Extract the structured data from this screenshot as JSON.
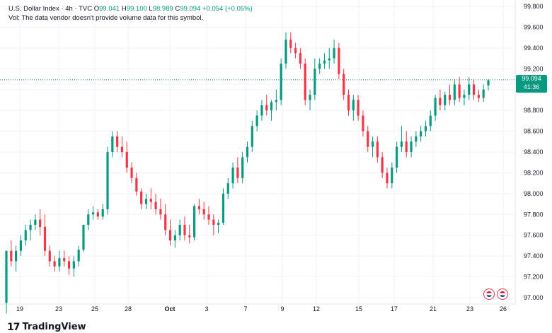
{
  "header": {
    "symbol": "U.S. Dollar Index · 4h · TVC",
    "o_label": "O",
    "o_value": "99.041",
    "h_label": "H",
    "h_value": "99.100",
    "l_label": "L",
    "l_value": "98.989",
    "c_label": "C",
    "c_value": "99.094",
    "change": "+0.054 (+0.05%)",
    "volume_note": "Vol: The data vendor doesn't provide volume data for this symbol."
  },
  "price_tag": {
    "price": "99.094",
    "countdown": "41:36"
  },
  "brand": {
    "name": "TradingView"
  },
  "colors": {
    "up": "#089981",
    "down": "#f23645",
    "grid": "#f0f3fa",
    "text": "#131722",
    "last_line": "#089981"
  },
  "icons": [
    "tradingview-logo-icon",
    "event-flag-icon",
    "event-flag-icon"
  ],
  "chart_data": {
    "type": "candlestick",
    "title": "U.S. Dollar Index · 4h · TVC",
    "y_ticks": [
      "97.000",
      "97.200",
      "97.400",
      "97.600",
      "97.800",
      "98.000",
      "98.200",
      "98.400",
      "98.600",
      "98.800",
      "99.000",
      "99.200",
      "99.400",
      "99.600",
      "99.800"
    ],
    "ylim": [
      97.0,
      99.85
    ],
    "x_ticks": [
      "19",
      "23",
      "25",
      "28",
      "Oct",
      "3",
      "7",
      "9",
      "12",
      "15",
      "17",
      "21",
      "23",
      "26"
    ],
    "last_price": 99.094,
    "candles": [
      [
        96.95,
        97.45,
        96.85,
        97.45
      ],
      [
        97.45,
        97.55,
        97.3,
        97.35
      ],
      [
        97.35,
        97.5,
        97.25,
        97.45
      ],
      [
        97.45,
        97.6,
        97.4,
        97.55
      ],
      [
        97.55,
        97.7,
        97.5,
        97.65
      ],
      [
        97.65,
        97.75,
        97.55,
        97.7
      ],
      [
        97.7,
        97.8,
        97.65,
        97.75
      ],
      [
        97.75,
        97.85,
        97.6,
        97.68
      ],
      [
        97.68,
        97.8,
        97.4,
        97.45
      ],
      [
        97.45,
        97.5,
        97.3,
        97.35
      ],
      [
        97.35,
        97.4,
        97.25,
        97.3
      ],
      [
        97.3,
        97.45,
        97.25,
        97.38
      ],
      [
        97.38,
        97.45,
        97.3,
        97.35
      ],
      [
        97.35,
        97.4,
        97.22,
        97.28
      ],
      [
        97.28,
        97.4,
        97.2,
        97.35
      ],
      [
        97.35,
        97.5,
        97.3,
        97.46
      ],
      [
        97.46,
        97.7,
        97.44,
        97.7
      ],
      [
        97.7,
        97.85,
        97.65,
        97.8
      ],
      [
        97.8,
        97.88,
        97.75,
        97.82
      ],
      [
        97.82,
        97.85,
        97.75,
        97.78
      ],
      [
        97.78,
        97.9,
        97.75,
        97.85
      ],
      [
        97.85,
        98.45,
        97.8,
        98.4
      ],
      [
        98.4,
        98.6,
        98.35,
        98.55
      ],
      [
        98.55,
        98.6,
        98.4,
        98.45
      ],
      [
        98.45,
        98.55,
        98.35,
        98.4
      ],
      [
        98.4,
        98.5,
        98.2,
        98.25
      ],
      [
        98.25,
        98.3,
        98.1,
        98.15
      ],
      [
        98.15,
        98.2,
        97.98,
        98.02
      ],
      [
        98.02,
        98.05,
        97.85,
        97.9
      ],
      [
        97.9,
        98.0,
        97.85,
        97.95
      ],
      [
        97.95,
        98.05,
        97.85,
        97.92
      ],
      [
        97.92,
        98.0,
        97.8,
        97.85
      ],
      [
        97.85,
        97.95,
        97.75,
        97.8
      ],
      [
        97.8,
        97.9,
        97.6,
        97.65
      ],
      [
        97.65,
        97.75,
        97.5,
        97.55
      ],
      [
        97.55,
        97.65,
        97.48,
        97.6
      ],
      [
        97.6,
        97.75,
        97.55,
        97.7
      ],
      [
        97.7,
        97.78,
        97.55,
        97.6
      ],
      [
        97.6,
        97.7,
        97.52,
        97.58
      ],
      [
        97.58,
        97.9,
        97.55,
        97.88
      ],
      [
        97.88,
        97.95,
        97.8,
        97.85
      ],
      [
        97.85,
        97.92,
        97.75,
        97.8
      ],
      [
        97.8,
        97.88,
        97.7,
        97.75
      ],
      [
        97.75,
        97.8,
        97.6,
        97.7
      ],
      [
        97.7,
        97.75,
        97.62,
        97.72
      ],
      [
        97.72,
        98.05,
        97.7,
        98.0
      ],
      [
        98.0,
        98.15,
        97.95,
        98.1
      ],
      [
        98.1,
        98.3,
        98.05,
        98.25
      ],
      [
        98.25,
        98.35,
        98.1,
        98.15
      ],
      [
        98.15,
        98.4,
        98.1,
        98.35
      ],
      [
        98.35,
        98.5,
        98.3,
        98.45
      ],
      [
        98.45,
        98.7,
        98.4,
        98.65
      ],
      [
        98.65,
        98.8,
        98.6,
        98.75
      ],
      [
        98.75,
        98.9,
        98.7,
        98.85
      ],
      [
        98.85,
        98.95,
        98.75,
        98.8
      ],
      [
        98.8,
        98.9,
        98.7,
        98.88
      ],
      [
        98.88,
        99.0,
        98.8,
        98.9
      ],
      [
        98.9,
        99.3,
        98.85,
        99.25
      ],
      [
        99.25,
        99.55,
        99.2,
        99.48
      ],
      [
        99.48,
        99.55,
        99.35,
        99.4
      ],
      [
        99.4,
        99.45,
        99.3,
        99.35
      ],
      [
        99.35,
        99.4,
        99.2,
        99.25
      ],
      [
        99.25,
        99.3,
        98.85,
        98.9
      ],
      [
        98.9,
        99.0,
        98.8,
        98.95
      ],
      [
        98.95,
        99.3,
        98.9,
        99.2
      ],
      [
        99.2,
        99.3,
        99.15,
        99.25
      ],
      [
        99.25,
        99.35,
        99.2,
        99.28
      ],
      [
        99.28,
        99.4,
        99.2,
        99.3
      ],
      [
        99.3,
        99.48,
        99.25,
        99.4
      ],
      [
        99.4,
        99.45,
        99.1,
        99.15
      ],
      [
        99.15,
        99.2,
        98.9,
        98.95
      ],
      [
        98.95,
        99.0,
        98.75,
        98.8
      ],
      [
        98.8,
        98.95,
        98.7,
        98.9
      ],
      [
        98.9,
        98.95,
        98.7,
        98.75
      ],
      [
        98.75,
        98.8,
        98.55,
        98.6
      ],
      [
        98.6,
        98.65,
        98.4,
        98.45
      ],
      [
        98.45,
        98.55,
        98.35,
        98.5
      ],
      [
        98.5,
        98.55,
        98.3,
        98.35
      ],
      [
        98.35,
        98.4,
        98.15,
        98.2
      ],
      [
        98.2,
        98.25,
        98.05,
        98.1
      ],
      [
        98.1,
        98.3,
        98.05,
        98.25
      ],
      [
        98.25,
        98.5,
        98.2,
        98.45
      ],
      [
        98.45,
        98.65,
        98.4,
        98.5
      ],
      [
        98.5,
        98.6,
        98.35,
        98.4
      ],
      [
        98.4,
        98.55,
        98.35,
        98.5
      ],
      [
        98.5,
        98.6,
        98.45,
        98.55
      ],
      [
        98.55,
        98.65,
        98.5,
        98.6
      ],
      [
        98.6,
        98.7,
        98.55,
        98.65
      ],
      [
        98.65,
        98.8,
        98.6,
        98.75
      ],
      [
        98.75,
        98.95,
        98.7,
        98.92
      ],
      [
        98.92,
        99.0,
        98.8,
        98.85
      ],
      [
        98.85,
        98.98,
        98.8,
        98.95
      ],
      [
        98.95,
        99.05,
        98.85,
        98.9
      ],
      [
        98.9,
        99.1,
        98.85,
        99.05
      ],
      [
        99.05,
        99.12,
        98.88,
        98.92
      ],
      [
        98.92,
        99.0,
        98.85,
        98.95
      ],
      [
        98.95,
        99.12,
        98.9,
        99.05
      ],
      [
        99.05,
        99.1,
        98.9,
        98.95
      ],
      [
        98.95,
        99.0,
        98.88,
        98.92
      ],
      [
        98.92,
        99.05,
        98.88,
        99.0
      ],
      [
        99.04,
        99.1,
        98.99,
        99.09
      ]
    ]
  }
}
